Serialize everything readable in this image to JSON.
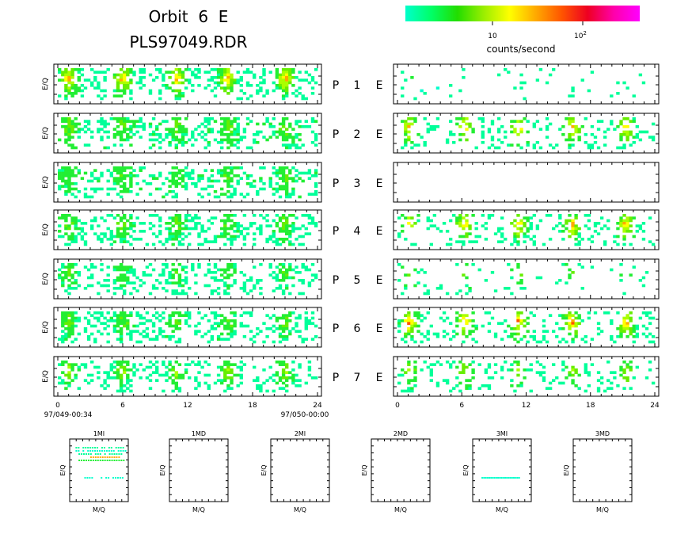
{
  "header": {
    "title_line1": "Orbit  6  E",
    "title_line2": "PLS97049.RDR"
  },
  "colorbar": {
    "label": "counts/second",
    "tick1": "10",
    "tick2_base": "10",
    "tick2_exp": "2",
    "stops": [
      "#00ffcc",
      "#00ff66",
      "#22dd00",
      "#99ee00",
      "#ffff00",
      "#ffaa00",
      "#ff5500",
      "#ee0022",
      "#ff00aa",
      "#ff00ff"
    ]
  },
  "chart_data": {
    "type": "heatmap",
    "ylabel": "E/Q",
    "left_column": {
      "x_range": [
        0,
        24
      ],
      "x_ticks": [
        "0",
        "6",
        "12",
        "18",
        "24"
      ],
      "start_label": "97/049-00:34",
      "end_label": "97/050-00:00",
      "peak_times": [
        1,
        6,
        11,
        15.7,
        21
      ],
      "blob_half_width": 1.1,
      "rows": [
        {
          "label": "P",
          "number": "1",
          "suffix": "E",
          "base_level": 0.28,
          "peak_level": 0.85,
          "coverage": 0.88
        },
        {
          "label": "P",
          "number": "2",
          "suffix": "E",
          "base_level": 0.3,
          "peak_level": 0.55,
          "coverage": 0.9
        },
        {
          "label": "P",
          "number": "3",
          "suffix": "E",
          "base_level": 0.3,
          "peak_level": 0.5,
          "coverage": 0.9
        },
        {
          "label": "P",
          "number": "4",
          "suffix": "E",
          "base_level": 0.28,
          "peak_level": 0.55,
          "coverage": 0.88
        },
        {
          "label": "P",
          "number": "5",
          "suffix": "E",
          "base_level": 0.25,
          "peak_level": 0.5,
          "coverage": 0.78
        },
        {
          "label": "P",
          "number": "6",
          "suffix": "E",
          "base_level": 0.28,
          "peak_level": 0.55,
          "coverage": 0.88
        },
        {
          "label": "P",
          "number": "7",
          "suffix": "E",
          "base_level": 0.25,
          "peak_level": 0.65,
          "coverage": 0.75
        }
      ]
    },
    "right_column": {
      "x_range": [
        0,
        24
      ],
      "x_ticks": [
        "0",
        "6",
        "12",
        "18",
        "24"
      ],
      "peak_times": [
        1.1,
        6.3,
        11.3,
        16.3,
        21.3
      ],
      "rows": [
        {
          "base_level": 0.22,
          "peak_level": 0.35,
          "coverage": 0.12
        },
        {
          "base_level": 0.25,
          "peak_level": 0.85,
          "coverage": 0.55
        },
        {
          "base_level": 0,
          "peak_level": 0,
          "coverage": 0
        },
        {
          "base_level": 0.25,
          "peak_level": 0.85,
          "coverage": 0.6
        },
        {
          "base_level": 0.25,
          "peak_level": 0.55,
          "coverage": 0.18
        },
        {
          "base_level": 0.28,
          "peak_level": 0.88,
          "coverage": 0.62
        },
        {
          "base_level": 0.25,
          "peak_level": 0.65,
          "coverage": 0.48
        }
      ]
    },
    "mass_panels": [
      {
        "title": "1MI",
        "xlabel": "M/Q",
        "ylabel": "E/Q",
        "has_data": true
      },
      {
        "title": "1MD",
        "xlabel": "M/Q",
        "ylabel": "E/Q",
        "has_data": false
      },
      {
        "title": "2MI",
        "xlabel": "M/Q",
        "ylabel": "E/Q",
        "has_data": false
      },
      {
        "title": "2MD",
        "xlabel": "M/Q",
        "ylabel": "E/Q",
        "has_data": false
      },
      {
        "title": "3MI",
        "xlabel": "M/Q",
        "ylabel": "E/Q",
        "has_data": true
      },
      {
        "title": "3MD",
        "xlabel": "M/Q",
        "ylabel": "E/Q",
        "has_data": false
      }
    ]
  }
}
